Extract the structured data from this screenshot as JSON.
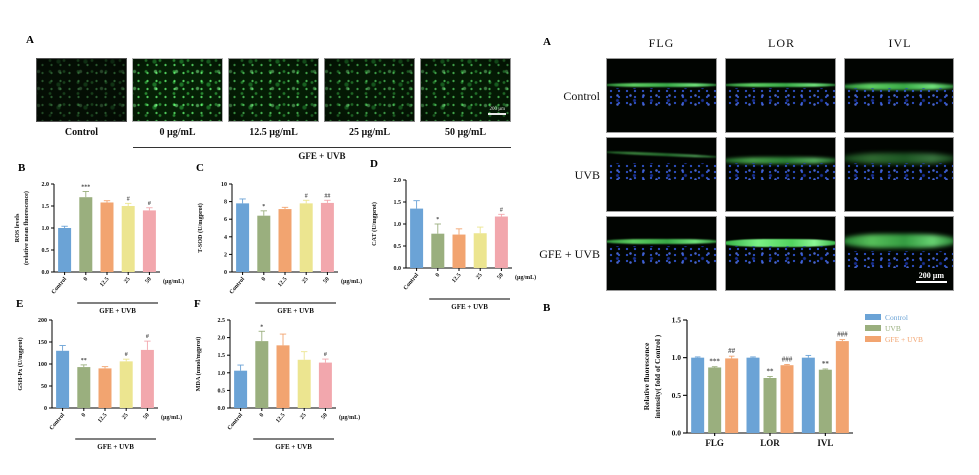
{
  "palette": {
    "blue": "#6BA3D6",
    "green": "#9AAF7E",
    "orange": "#F2A470",
    "yellow": "#ECE590",
    "pink": "#F2A7AD"
  },
  "left": {
    "panel_a": {
      "label": "A",
      "image_labels": [
        "Control",
        "0 µg/mL",
        "12.5 µg/mL",
        "25 µg/mL",
        "50 µg/mL"
      ],
      "bracket_label": "GFE + UVB",
      "scale_bar": "200 µm"
    }
  },
  "right": {
    "panel_a": {
      "label": "A",
      "columns": [
        "FLG",
        "LOR",
        "IVL"
      ],
      "rows": [
        "Control",
        "UVB",
        "GFE + UVB"
      ],
      "scale_bar": "200 µm"
    },
    "panel_b_label": "B"
  },
  "chart_data": [
    {
      "id": "ros",
      "panel": "B",
      "type": "bar",
      "ylabel_lines": [
        "ROS levels",
        "(relative mean fluorescence)"
      ],
      "ymax": 2,
      "yticks": [
        [
          0,
          "0.0"
        ],
        [
          0.5,
          "0.5"
        ],
        [
          1,
          "1.0"
        ],
        [
          1.5,
          "1.5"
        ],
        [
          2,
          "2.0"
        ]
      ],
      "categories": [
        "Control",
        "0",
        "12.5",
        "25",
        "50"
      ],
      "values": [
        1.0,
        1.7,
        1.58,
        1.5,
        1.4
      ],
      "errors": [
        0.04,
        0.13,
        0.04,
        0.06,
        0.06
      ],
      "sig": [
        "",
        "***",
        "",
        "#",
        "#"
      ],
      "unit_label": "(µg/mL)",
      "bracket_label": "GFE + UVB",
      "bar_colors": [
        "#6BA3D6",
        "#9AAF7E",
        "#F2A470",
        "#ECE590",
        "#F2A7AD"
      ]
    },
    {
      "id": "tsod",
      "panel": "C",
      "type": "bar",
      "ylabel_lines": [
        "T-SOD (U/mgprot)"
      ],
      "ymax": 10,
      "yticks": [
        [
          0,
          "0"
        ],
        [
          2,
          "2"
        ],
        [
          4,
          "4"
        ],
        [
          6,
          "6"
        ],
        [
          8,
          "8"
        ],
        [
          10,
          "10"
        ]
      ],
      "categories": [
        "Control",
        "0",
        "12.5",
        "25",
        "50"
      ],
      "values": [
        7.8,
        6.4,
        7.15,
        7.8,
        7.85
      ],
      "errors": [
        0.5,
        0.55,
        0.2,
        0.35,
        0.3
      ],
      "sig": [
        "",
        "*",
        "",
        "#",
        "##"
      ],
      "unit_label": "(µg/mL)",
      "bracket_label": "GFE + UVB",
      "bar_colors": [
        "#6BA3D6",
        "#9AAF7E",
        "#F2A470",
        "#ECE590",
        "#F2A7AD"
      ]
    },
    {
      "id": "cat",
      "panel": "D",
      "type": "bar",
      "ylabel_lines": [
        "CAT (U/mgprot)"
      ],
      "ymax": 2,
      "yticks": [
        [
          0,
          "0.0"
        ],
        [
          0.5,
          "0.5"
        ],
        [
          1,
          "1.0"
        ],
        [
          1.5,
          "1.5"
        ],
        [
          2,
          "2.0"
        ]
      ],
      "categories": [
        "Control",
        "0",
        "12.5",
        "25",
        "50"
      ],
      "values": [
        1.35,
        0.78,
        0.76,
        0.79,
        1.17
      ],
      "errors": [
        0.18,
        0.22,
        0.13,
        0.14,
        0.05
      ],
      "sig": [
        "",
        "*",
        "",
        "",
        "#"
      ],
      "unit_label": "(µg/mL)",
      "bracket_label": "GFE + UVB",
      "bar_colors": [
        "#6BA3D6",
        "#9AAF7E",
        "#F2A470",
        "#ECE590",
        "#F2A7AD"
      ]
    },
    {
      "id": "gsh",
      "panel": "E",
      "type": "bar",
      "ylabel_lines": [
        "GSH-Px (U/mgprot)"
      ],
      "ymax": 200,
      "yticks": [
        [
          0,
          "0"
        ],
        [
          50,
          "50"
        ],
        [
          100,
          "100"
        ],
        [
          150,
          "150"
        ],
        [
          200,
          "200"
        ]
      ],
      "categories": [
        "Control",
        "0",
        "12.5",
        "25",
        "50"
      ],
      "values": [
        130,
        93,
        90,
        106,
        132
      ],
      "errors": [
        12,
        5,
        4,
        5,
        20
      ],
      "sig": [
        "",
        "**",
        "",
        "#",
        "#"
      ],
      "unit_label": "(µg/mL)",
      "bracket_label": "GFE + UVB",
      "bar_colors": [
        "#6BA3D6",
        "#9AAF7E",
        "#F2A470",
        "#ECE590",
        "#F2A7AD"
      ]
    },
    {
      "id": "mda",
      "panel": "F",
      "type": "bar",
      "ylabel_lines": [
        "MDA (nmol/mgprot)"
      ],
      "ymax": 2.5,
      "yticks": [
        [
          0,
          "0.0"
        ],
        [
          0.5,
          "0.5"
        ],
        [
          1,
          "1.0"
        ],
        [
          1.5,
          "1.5"
        ],
        [
          2,
          "2.0"
        ],
        [
          2.5,
          "2.5"
        ]
      ],
      "categories": [
        "Control",
        "0",
        "12.5",
        "25",
        "50"
      ],
      "values": [
        1.06,
        1.9,
        1.78,
        1.37,
        1.29
      ],
      "errors": [
        0.16,
        0.28,
        0.32,
        0.23,
        0.1
      ],
      "sig": [
        "",
        "*",
        "",
        "",
        "#"
      ],
      "unit_label": "(µg/mL)",
      "bracket_label": "GFE + UVB",
      "bar_colors": [
        "#6BA3D6",
        "#9AAF7E",
        "#F2A470",
        "#ECE590",
        "#F2A7AD"
      ]
    },
    {
      "id": "fold",
      "panel": "B",
      "type": "grouped_bar",
      "ylabel_lines": [
        "Relative fluorescence",
        "intensity( fold of Control )"
      ],
      "ymax": 1.5,
      "yticks": [
        [
          0,
          "0.0"
        ],
        [
          0.5,
          "0.5"
        ],
        [
          1,
          "1.0"
        ],
        [
          1.5,
          "1.5"
        ]
      ],
      "categories": [
        "FLG",
        "LOR",
        "IVL"
      ],
      "series": [
        {
          "name": "Control",
          "color": "#6BA3D6",
          "values": [
            1.0,
            1.0,
            1.0
          ],
          "errors": [
            0.01,
            0.01,
            0.03
          ],
          "sig": [
            "",
            "",
            ""
          ]
        },
        {
          "name": "UVB",
          "color": "#9AAF7E",
          "values": [
            0.87,
            0.73,
            0.84
          ],
          "errors": [
            0.01,
            0.02,
            0.01
          ],
          "sig": [
            "***",
            "**",
            "**"
          ]
        },
        {
          "name": "GFE + UVB",
          "color": "#F2A470",
          "values": [
            0.99,
            0.9,
            1.22
          ],
          "errors": [
            0.03,
            0.01,
            0.02
          ],
          "sig": [
            "##",
            "###",
            "###"
          ]
        }
      ]
    }
  ]
}
